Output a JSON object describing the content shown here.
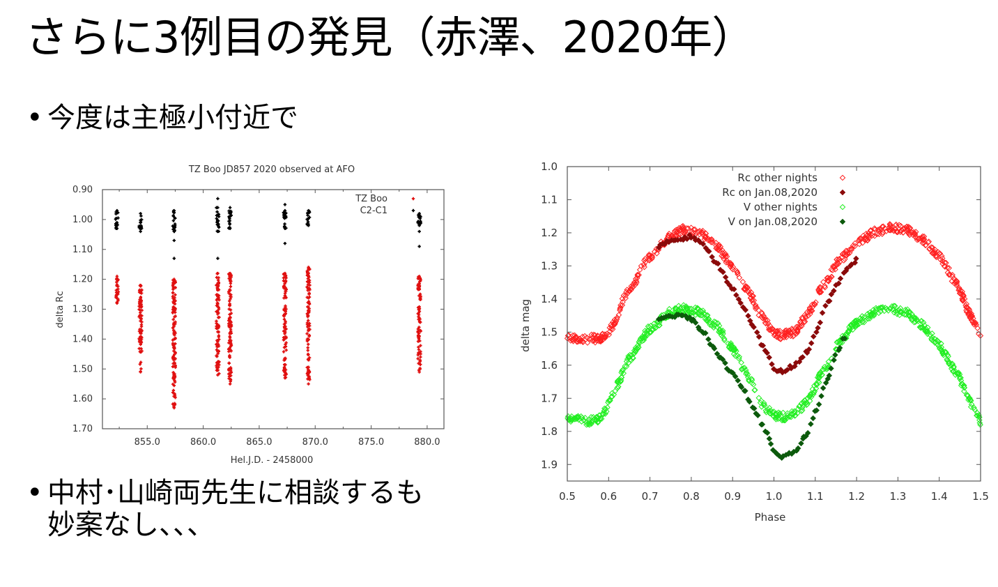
{
  "slide": {
    "title": "さらに3例目の発見（赤澤、2020年）",
    "bullets": [
      {
        "marker": "•",
        "text": "今度は主極小付近で"
      },
      {
        "marker": "•",
        "line1": "中村･山崎両先生に相談するも",
        "line2": "妙案なし、、、"
      }
    ]
  },
  "chart_data": [
    {
      "type": "scatter",
      "title": "TZ Boo JD857 2020 observed at AFO",
      "xlabel": "Hel.J.D. - 2458000",
      "ylabel": "delta Rc",
      "xlim": [
        851.0,
        881.5
      ],
      "ylim": [
        0.9,
        1.7
      ],
      "y_inverted": true,
      "xticks": [
        855.0,
        860.0,
        865.0,
        870.0,
        875.0,
        880.0
      ],
      "xtick_labels": [
        "855.0",
        "860.0",
        "865.0",
        "870.0",
        "875.0",
        "880.0"
      ],
      "yticks": [
        0.9,
        1.0,
        1.1,
        1.2,
        1.3,
        1.4,
        1.5,
        1.6,
        1.7
      ],
      "ytick_labels": [
        "0.90",
        "1.00",
        "1.10",
        "1.20",
        "1.30",
        "1.40",
        "1.50",
        "1.60",
        "1.70"
      ],
      "legend_position": "top-right",
      "grid": false,
      "series": [
        {
          "name": "TZ Boo",
          "color": "#e01010",
          "marker": "plus",
          "nights": [
            {
              "x": 852.3,
              "ymin": 1.19,
              "ymax": 1.28
            },
            {
              "x": 854.4,
              "ymin": 1.22,
              "ymax": 1.51
            },
            {
              "x": 857.4,
              "ymin": 1.2,
              "ymax": 1.63
            },
            {
              "x": 861.3,
              "ymin": 1.18,
              "ymax": 1.52
            },
            {
              "x": 862.4,
              "ymin": 1.18,
              "ymax": 1.55
            },
            {
              "x": 867.3,
              "ymin": 1.18,
              "ymax": 1.53
            },
            {
              "x": 869.4,
              "ymin": 1.16,
              "ymax": 1.55
            },
            {
              "x": 879.3,
              "ymin": 1.19,
              "ymax": 1.51
            }
          ]
        },
        {
          "name": "C2-C1",
          "color": "#000000",
          "marker": "plus",
          "nights": [
            {
              "x": 852.3,
              "ymin": 0.97,
              "ymax": 1.03,
              "outliers": []
            },
            {
              "x": 854.4,
              "ymin": 0.98,
              "ymax": 1.04,
              "outliers": []
            },
            {
              "x": 857.4,
              "ymin": 0.97,
              "ymax": 1.04,
              "outliers": [
                1.07,
                1.13
              ]
            },
            {
              "x": 861.3,
              "ymin": 0.96,
              "ymax": 1.04,
              "outliers": [
                0.93,
                1.13
              ]
            },
            {
              "x": 862.4,
              "ymin": 0.96,
              "ymax": 1.03,
              "outliers": []
            },
            {
              "x": 867.3,
              "ymin": 0.97,
              "ymax": 1.03,
              "outliers": [
                0.95,
                1.08
              ]
            },
            {
              "x": 869.4,
              "ymin": 0.97,
              "ymax": 1.02,
              "outliers": []
            },
            {
              "x": 879.3,
              "ymin": 0.98,
              "ymax": 1.02,
              "outliers": [
                1.04,
                1.09
              ]
            }
          ]
        }
      ]
    },
    {
      "type": "scatter",
      "title": "",
      "xlabel": "Phase",
      "ylabel": "delta mag",
      "xlim": [
        0.5,
        1.5
      ],
      "ylim": [
        1.0,
        1.95
      ],
      "y_inverted": true,
      "xticks": [
        0.5,
        0.6,
        0.7,
        0.8,
        0.9,
        1.0,
        1.1,
        1.2,
        1.3,
        1.4,
        1.5
      ],
      "xtick_labels": [
        "0.5",
        "0.6",
        "0.7",
        "0.8",
        "0.9",
        "1.0",
        "1.1",
        "1.2",
        "1.3",
        "1.4",
        "1.5"
      ],
      "yticks": [
        1.0,
        1.1,
        1.2,
        1.3,
        1.4,
        1.5,
        1.6,
        1.7,
        1.8,
        1.9
      ],
      "ytick_labels": [
        "1.0",
        "1.1",
        "1.2",
        "1.3",
        "1.4",
        "1.5",
        "1.6",
        "1.7",
        "1.8",
        "1.9"
      ],
      "legend_position": "top-center",
      "grid": false,
      "series": [
        {
          "name": "Rc other nights",
          "color": "#ff2020",
          "marker": "open-diamond",
          "phase": [
            0.5,
            0.55,
            0.58,
            0.6,
            0.65,
            0.7,
            0.75,
            0.78,
            0.82,
            0.86,
            0.9,
            0.94,
            0.97,
            1.0,
            1.02,
            1.05,
            1.08,
            1.12,
            1.16,
            1.2,
            1.25,
            1.28,
            1.32,
            1.36,
            1.4,
            1.44,
            1.48,
            1.5
          ],
          "mag": [
            1.52,
            1.52,
            1.52,
            1.5,
            1.37,
            1.27,
            1.21,
            1.19,
            1.2,
            1.24,
            1.3,
            1.38,
            1.45,
            1.5,
            1.51,
            1.5,
            1.45,
            1.36,
            1.28,
            1.23,
            1.195,
            1.185,
            1.19,
            1.22,
            1.27,
            1.35,
            1.46,
            1.52
          ]
        },
        {
          "name": "Rc on Jan.08,2020",
          "color": "#8b0a0a",
          "marker": "filled-diamond",
          "phase": [
            0.72,
            0.75,
            0.78,
            0.8,
            0.83,
            0.86,
            0.89,
            0.92,
            0.95,
            0.98,
            1.0,
            1.02,
            1.05,
            1.08,
            1.1,
            1.13,
            1.15,
            1.18,
            1.2
          ],
          "mag": [
            1.24,
            1.22,
            1.22,
            1.21,
            1.24,
            1.29,
            1.35,
            1.41,
            1.48,
            1.56,
            1.61,
            1.62,
            1.6,
            1.56,
            1.5,
            1.41,
            1.36,
            1.31,
            1.28
          ]
        },
        {
          "name": "V other nights",
          "color": "#22ee22",
          "marker": "open-diamond",
          "phase": [
            0.5,
            0.55,
            0.58,
            0.6,
            0.62,
            0.65,
            0.7,
            0.75,
            0.78,
            0.82,
            0.86,
            0.9,
            0.94,
            0.97,
            1.0,
            1.02,
            1.05,
            1.08,
            1.12,
            1.16,
            1.2,
            1.25,
            1.28,
            1.32,
            1.36,
            1.4,
            1.44,
            1.48,
            1.5
          ],
          "mag": [
            1.76,
            1.77,
            1.76,
            1.72,
            1.66,
            1.58,
            1.49,
            1.44,
            1.43,
            1.44,
            1.48,
            1.55,
            1.64,
            1.72,
            1.75,
            1.755,
            1.75,
            1.71,
            1.62,
            1.53,
            1.47,
            1.435,
            1.43,
            1.44,
            1.48,
            1.54,
            1.62,
            1.72,
            1.77
          ]
        },
        {
          "name": "V on Jan.08,2020",
          "color": "#0c5a0c",
          "marker": "filled-diamond",
          "phase": [
            0.72,
            0.75,
            0.78,
            0.8,
            0.83,
            0.86,
            0.89,
            0.92,
            0.95,
            0.98,
            1.0,
            1.02,
            1.05,
            1.08,
            1.1,
            1.13,
            1.15,
            1.17
          ],
          "mag": [
            1.46,
            1.45,
            1.45,
            1.46,
            1.5,
            1.56,
            1.61,
            1.66,
            1.73,
            1.8,
            1.86,
            1.875,
            1.86,
            1.81,
            1.74,
            1.64,
            1.57,
            1.52
          ]
        }
      ]
    }
  ]
}
